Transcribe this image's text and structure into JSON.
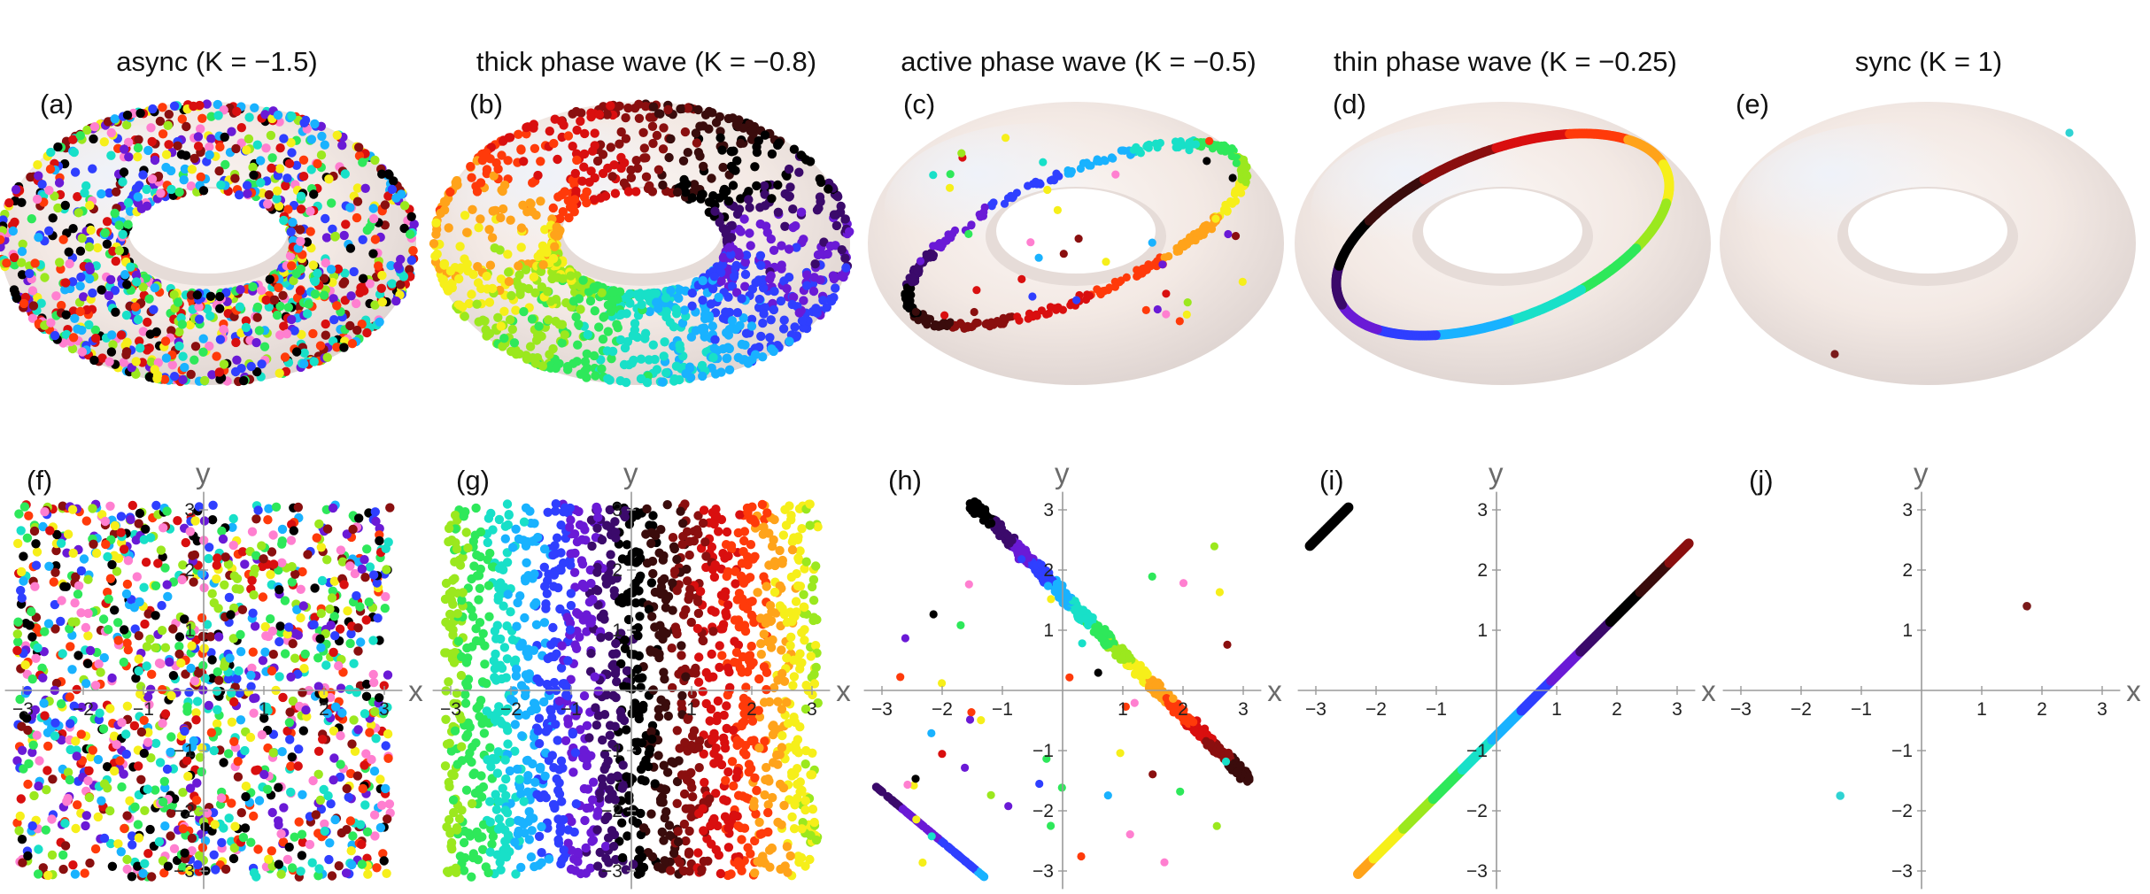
{
  "chart_data": [
    {
      "id": "a",
      "type": "scatter",
      "kind": "torus",
      "label": "(a)",
      "title": "async (K = −1.5)",
      "state": "async",
      "description_points": "uniformly random points, random hue"
    },
    {
      "id": "b",
      "type": "scatter",
      "kind": "torus",
      "label": "(b)",
      "title": "thick phase wave (K = −0.8)",
      "state": "thick"
    },
    {
      "id": "c",
      "type": "scatter",
      "kind": "torus",
      "label": "(c)",
      "title": "active phase wave (K = −0.5)",
      "state": "active"
    },
    {
      "id": "d",
      "type": "scatter",
      "kind": "torus",
      "label": "(d)",
      "title": "thin phase wave (K = −0.25)",
      "state": "thin"
    },
    {
      "id": "e",
      "type": "scatter",
      "kind": "torus",
      "label": "(e)",
      "title": "sync (K = 1)",
      "state": "sync",
      "points": [
        {
          "x": 1.7,
          "y": 1.4,
          "color": "#2fd3d3"
        },
        {
          "x": -1.3,
          "y": -1.8,
          "color": "#7a1a1a"
        }
      ]
    },
    {
      "id": "f",
      "type": "scatter",
      "kind": "plane",
      "label": "(f)",
      "state": "async",
      "xlabel": "x",
      "ylabel": "y",
      "xlim": [
        -3.14,
        3.14
      ],
      "ylim": [
        -3.14,
        3.14
      ],
      "xticks": [
        -3,
        -2,
        -1,
        1,
        2,
        3
      ],
      "yticks": [
        -3,
        -2,
        -1,
        1,
        2,
        3
      ]
    },
    {
      "id": "g",
      "type": "scatter",
      "kind": "plane",
      "label": "(g)",
      "state": "thick",
      "xlabel": "x",
      "ylabel": "y",
      "xlim": [
        -3.14,
        3.14
      ],
      "ylim": [
        -3.14,
        3.14
      ],
      "xticks": [
        -3,
        -2,
        -1,
        1,
        2,
        3
      ],
      "yticks": [
        -3,
        -2,
        -1,
        1,
        2,
        3
      ]
    },
    {
      "id": "h",
      "type": "scatter",
      "kind": "plane",
      "label": "(h)",
      "state": "active",
      "xlabel": "x",
      "ylabel": "y",
      "xlim": [
        -3.14,
        3.14
      ],
      "ylim": [
        -3.14,
        3.14
      ],
      "xticks": [
        -3,
        -2,
        -1,
        1,
        2,
        3
      ],
      "yticks": [
        -3,
        -2,
        -1,
        1,
        2,
        3
      ]
    },
    {
      "id": "i",
      "type": "scatter",
      "kind": "plane",
      "label": "(i)",
      "state": "thin",
      "xlabel": "x",
      "ylabel": "y",
      "xlim": [
        -3.14,
        3.14
      ],
      "ylim": [
        -3.14,
        3.14
      ],
      "xticks": [
        -3,
        -2,
        -1,
        1,
        2,
        3
      ],
      "yticks": [
        -3,
        -2,
        -1,
        1,
        2,
        3
      ]
    },
    {
      "id": "j",
      "type": "scatter",
      "kind": "plane",
      "label": "(j)",
      "state": "sync",
      "xlabel": "x",
      "ylabel": "y",
      "xlim": [
        -3.14,
        3.14
      ],
      "ylim": [
        -3.14,
        3.14
      ],
      "xticks": [
        -3,
        -2,
        -1,
        1,
        2,
        3
      ],
      "yticks": [
        -3,
        -2,
        -1,
        1,
        2,
        3
      ],
      "points": [
        {
          "x": 1.75,
          "y": 1.4,
          "color": "#7a1a1a"
        },
        {
          "x": -1.35,
          "y": -1.75,
          "color": "#2fd3d3"
        }
      ]
    }
  ],
  "colors": {
    "torus_fill": "#f4ece6",
    "phase_palette": [
      "#000000",
      "#3b0a6b",
      "#6a1ad6",
      "#2f3fff",
      "#19b2ff",
      "#18e0c8",
      "#2ee85a",
      "#9be81e",
      "#f6ef1a",
      "#ffa31a",
      "#ff3a0a",
      "#d90f0f",
      "#8a0f0f",
      "#3a0c0c"
    ]
  }
}
